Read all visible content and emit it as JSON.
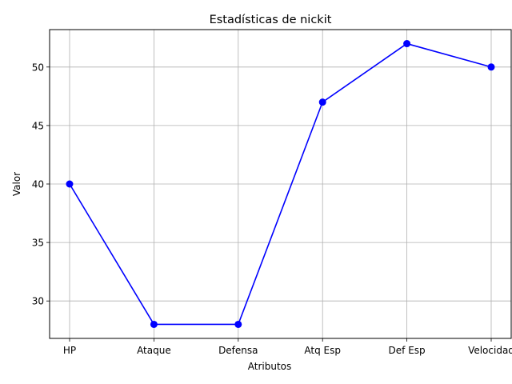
{
  "chart_data": {
    "type": "line",
    "title": "Estadísticas de nickit",
    "xlabel": "Atributos",
    "ylabel": "Valor",
    "categories": [
      "HP",
      "Ataque",
      "Defensa",
      "Atq Esp",
      "Def Esp",
      "Velocidad"
    ],
    "series": [
      {
        "values": [
          40,
          28,
          28,
          47,
          52,
          50
        ],
        "color": "#0000ff",
        "marker": "circle"
      }
    ],
    "ylim": [
      26.8,
      53.2
    ],
    "yticks": [
      30,
      35,
      40,
      45,
      50
    ],
    "grid": true,
    "legend": "none"
  }
}
